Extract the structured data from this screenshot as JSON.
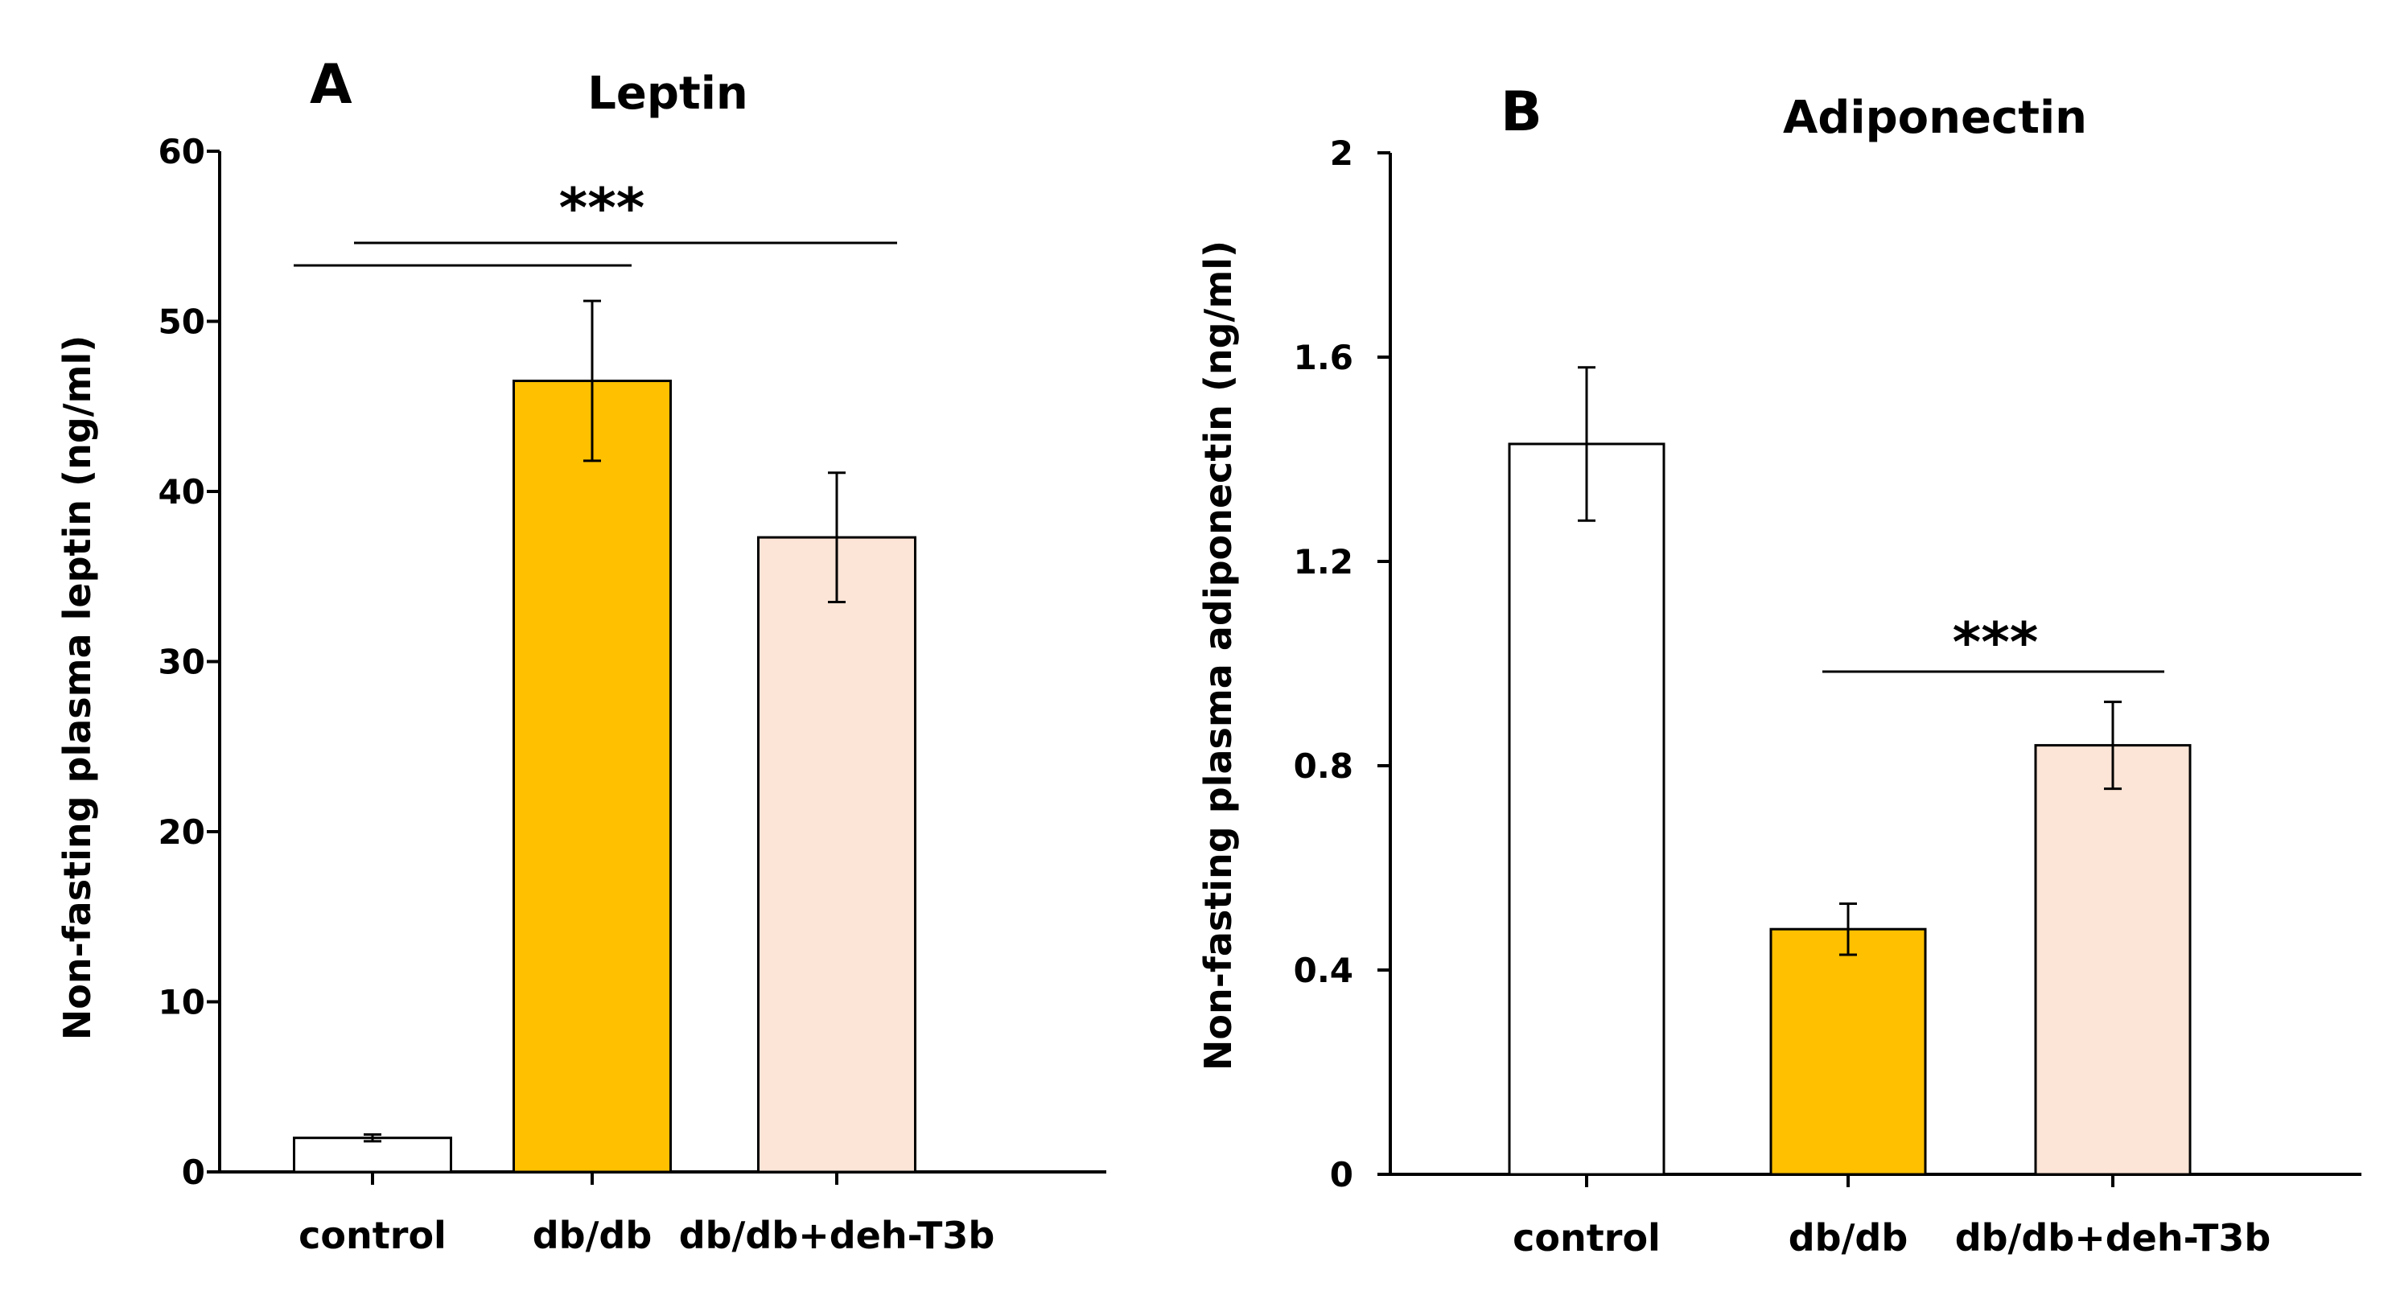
{
  "chart_data": [
    {
      "panel": "A",
      "type": "bar",
      "title": "Leptin",
      "ylabel": "Non-fasting plasma leptin (ng/ml)",
      "xlabel": "",
      "ylim": [
        0,
        60
      ],
      "yticks": [
        0,
        10,
        20,
        30,
        40,
        50,
        60
      ],
      "categories": [
        "control",
        "db/db",
        "db/db+deh-T3b"
      ],
      "values": [
        2.0,
        46.5,
        37.3
      ],
      "errors": [
        0.2,
        4.7,
        3.8
      ],
      "colors": [
        "#ffffff",
        "#ffc000",
        "#fce4d6"
      ],
      "significance": [
        {
          "label": "***",
          "from": "control",
          "to": "db/db"
        },
        {
          "label": "***",
          "from": "control",
          "to": "db/db+deh-T3b"
        }
      ]
    },
    {
      "panel": "B",
      "type": "bar",
      "title": "Adiponectin",
      "ylabel": "Non-fasting plasma adiponectin (ng/ml)",
      "xlabel": "",
      "ylim": [
        0,
        2
      ],
      "yticks": [
        "0",
        "0.4",
        "0.8",
        "1.2",
        "1.6",
        "2"
      ],
      "categories": [
        "control",
        "db/db",
        "db/db+deh-T3b"
      ],
      "values": [
        1.43,
        0.48,
        0.84
      ],
      "errors": [
        0.15,
        0.05,
        0.085
      ],
      "colors": [
        "#ffffff",
        "#ffc000",
        "#fce4d6"
      ],
      "significance": [
        {
          "label": "***",
          "from": "db/db",
          "to": "db/db+deh-T3b"
        }
      ]
    }
  ]
}
